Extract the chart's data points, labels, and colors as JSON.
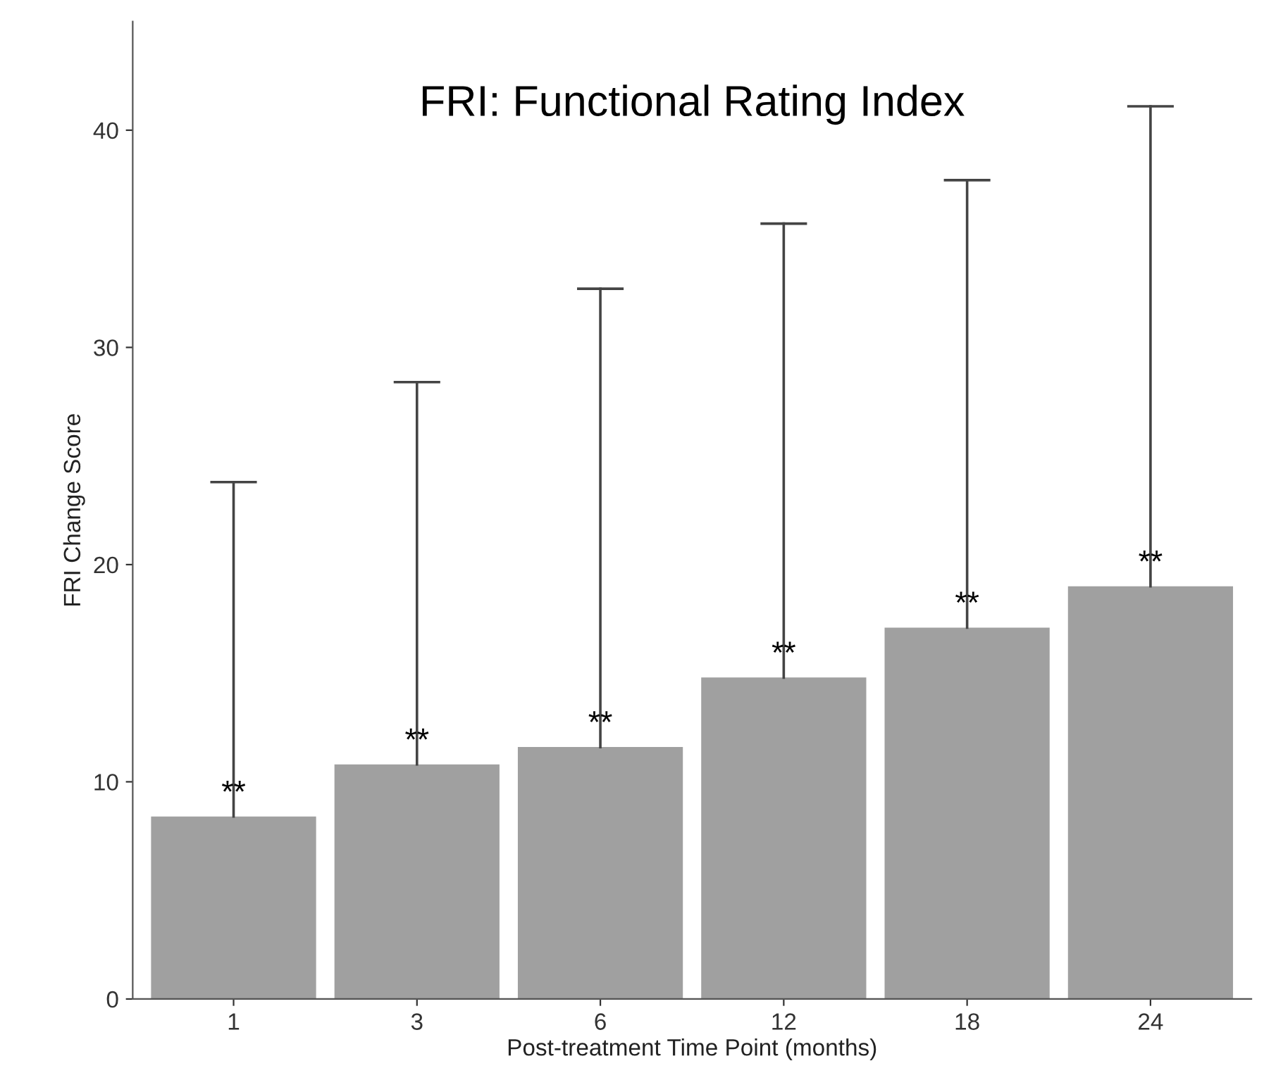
{
  "chart_data": {
    "type": "bar",
    "title": "FRI: Functional Rating Index",
    "xlabel": "Post-treatment Time Point (months)",
    "ylabel": "FRI Change Score",
    "categories": [
      "1",
      "3",
      "6",
      "12",
      "18",
      "24"
    ],
    "values": [
      8.4,
      10.8,
      11.6,
      14.8,
      17.1,
      19.0
    ],
    "errors": [
      [
        8.4,
        23.8
      ],
      [
        10.8,
        28.4
      ],
      [
        11.6,
        32.7
      ],
      [
        14.8,
        35.7
      ],
      [
        17.1,
        37.7
      ],
      [
        19.0,
        41.1
      ]
    ],
    "color": "#a0a0a0",
    "ylim": [
      0,
      45
    ],
    "yticks": [
      0,
      10,
      20,
      30,
      40
    ],
    "grid": false,
    "legend": false,
    "annotations": [
      {
        "text": "**",
        "x": "1",
        "y": 8.4
      },
      {
        "text": "**",
        "x": "3",
        "y": 10.8
      },
      {
        "text": "**",
        "x": "6",
        "y": 11.6
      },
      {
        "text": "**",
        "x": "12",
        "y": 14.8
      },
      {
        "text": "**",
        "x": "18",
        "y": 17.1
      },
      {
        "text": "**",
        "x": "24",
        "y": 19.0
      }
    ]
  }
}
